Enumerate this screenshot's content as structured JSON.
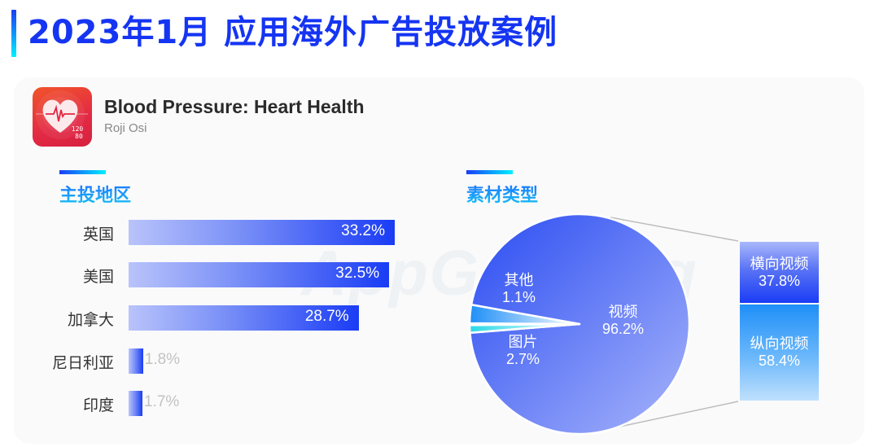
{
  "header": {
    "title": "2023年1月  应用海外广告投放案例"
  },
  "app": {
    "name": "Blood Pressure: Heart Health",
    "developer": "Roji Osi",
    "icon": "heart-pulse-icon",
    "icon_readout": [
      "120",
      "80"
    ]
  },
  "watermark": "AppGrowing",
  "sections": {
    "regions_title": "主投地区",
    "creative_title": "素材类型"
  },
  "colors": {
    "title_blue": "#1535f2",
    "bar_start": "#b9c3fb",
    "bar_end": "#1a3cf5",
    "pie_video_start": "#2a4cf2",
    "pie_video_end": "#a7b4fa",
    "pie_image": "#1e8ff7",
    "pie_other": "#2ad9e6",
    "stack_horizontal": "#1a3cf5",
    "stack_vertical": "#1f8ff8"
  },
  "regions": [
    {
      "name": "英国",
      "value": 33.2,
      "label": "33.2%"
    },
    {
      "name": "美国",
      "value": 32.5,
      "label": "32.5%"
    },
    {
      "name": "加拿大",
      "value": 28.7,
      "label": "28.7%"
    },
    {
      "name": "尼日利亚",
      "value": 1.8,
      "label": "1.8%"
    },
    {
      "name": "印度",
      "value": 1.7,
      "label": "1.7%"
    }
  ],
  "creative": {
    "pie": [
      {
        "name": "视频",
        "value": 96.2,
        "label": "96.2%"
      },
      {
        "name": "图片",
        "value": 2.7,
        "label": "2.7%"
      },
      {
        "name": "其他",
        "value": 1.1,
        "label": "1.1%"
      }
    ],
    "video_breakdown": [
      {
        "name": "横向视频",
        "value": 37.8,
        "label": "37.8%"
      },
      {
        "name": "纵向视频",
        "value": 58.4,
        "label": "58.4%"
      }
    ]
  },
  "chart_data": [
    {
      "type": "bar",
      "orientation": "horizontal",
      "title": "主投地区",
      "categories": [
        "英国",
        "美国",
        "加拿大",
        "尼日利亚",
        "印度"
      ],
      "values": [
        33.2,
        32.5,
        28.7,
        1.8,
        1.7
      ],
      "unit": "%",
      "xlabel": "",
      "ylabel": "",
      "grid": false,
      "legend": "none"
    },
    {
      "type": "pie",
      "subtype": "bar-of-pie",
      "title": "素材类型",
      "categories": [
        "视频",
        "图片",
        "其他"
      ],
      "values": [
        96.2,
        2.7,
        1.1
      ],
      "unit": "%",
      "breakdown": {
        "of": "视频",
        "type": "stacked-bar",
        "categories": [
          "横向视频",
          "纵向视频"
        ],
        "values": [
          37.8,
          58.4
        ],
        "unit": "%"
      },
      "legend": "none"
    }
  ]
}
